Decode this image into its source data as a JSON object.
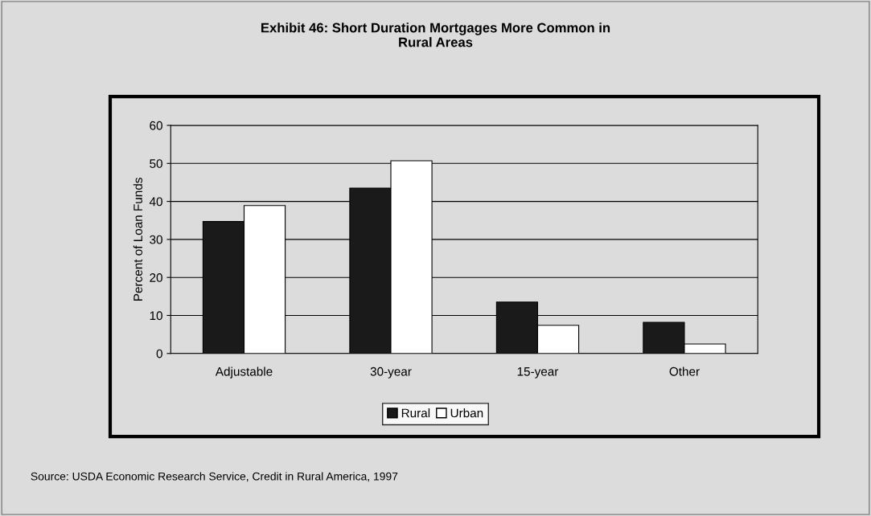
{
  "chart_data": {
    "type": "bar",
    "title": "Exhibit 46: Short Duration Mortgages More Common in\nRural Areas",
    "ylabel": "Percent of Loan Funds",
    "categories": [
      "Adjustable",
      "30-year",
      "15-year",
      "Other"
    ],
    "series": [
      {
        "name": "Rural",
        "color": "#1a1a1a",
        "values": [
          34.7,
          43.5,
          13.5,
          8.2
        ]
      },
      {
        "name": "Urban",
        "color": "#ffffff",
        "values": [
          38.9,
          50.7,
          7.4,
          2.5
        ]
      }
    ],
    "ylim": [
      0,
      60
    ],
    "yticks": [
      0,
      10,
      20,
      30,
      40,
      50,
      60
    ],
    "grid": "y",
    "legend": "bottom",
    "annotations": [
      "Source: USDA Economic Research Service, Credit in Rural America, 1997"
    ]
  }
}
